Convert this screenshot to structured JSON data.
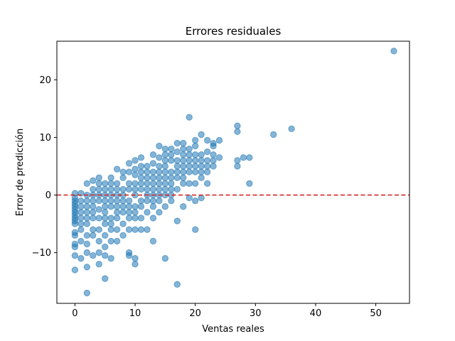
{
  "chart_data": {
    "type": "scatter",
    "title": "Errores residuales",
    "xlabel": "Ventas reales",
    "ylabel": "Error de predicción",
    "xlim": [
      -3,
      55.6
    ],
    "ylim": [
      -18.8,
      26.7
    ],
    "xticks": [
      0,
      10,
      20,
      30,
      40,
      50
    ],
    "yticks": [
      -10,
      0,
      10,
      20
    ],
    "yticklabels": [
      "−10",
      "0",
      "10",
      "20"
    ],
    "grid": false,
    "reference_line": {
      "y": 0,
      "color": "#d62728",
      "style": "dashed"
    },
    "marker_color": "#1f77b4",
    "marker_alpha": 0.55,
    "series": [
      {
        "points": [
          [
            0,
            -13
          ],
          [
            0,
            -10.5
          ],
          [
            0,
            -9
          ],
          [
            0,
            -8.5
          ],
          [
            0,
            -7
          ],
          [
            0,
            -6.5
          ],
          [
            0,
            -5
          ],
          [
            0,
            -4.5
          ],
          [
            0,
            -4
          ],
          [
            0,
            -3.5
          ],
          [
            0,
            -3
          ],
          [
            0,
            -2.5
          ],
          [
            0,
            -2
          ],
          [
            0,
            -1.5
          ],
          [
            0,
            -1
          ],
          [
            0,
            -0.5
          ],
          [
            0,
            0.3
          ],
          [
            1,
            -11
          ],
          [
            1,
            -8
          ],
          [
            1,
            -6
          ],
          [
            1,
            -5
          ],
          [
            1,
            -4
          ],
          [
            1,
            -3
          ],
          [
            1,
            -2
          ],
          [
            1,
            -1
          ],
          [
            1,
            0.3
          ],
          [
            2,
            -17
          ],
          [
            2,
            -12.5
          ],
          [
            2,
            -10
          ],
          [
            2,
            -8.5
          ],
          [
            2,
            -7
          ],
          [
            2,
            -5
          ],
          [
            2,
            -4
          ],
          [
            2,
            -3
          ],
          [
            2,
            -2
          ],
          [
            2,
            -1
          ],
          [
            2,
            0
          ],
          [
            2,
            2
          ],
          [
            3,
            -10.5
          ],
          [
            3,
            -7
          ],
          [
            3,
            -6
          ],
          [
            3,
            -4
          ],
          [
            3,
            -3
          ],
          [
            3,
            -2
          ],
          [
            3,
            -1
          ],
          [
            3,
            0
          ],
          [
            3,
            1
          ],
          [
            3,
            2.5
          ],
          [
            4,
            -12
          ],
          [
            4,
            -10
          ],
          [
            4,
            -8
          ],
          [
            4,
            -6
          ],
          [
            4,
            -4
          ],
          [
            4,
            -2.5
          ],
          [
            4,
            -1
          ],
          [
            4,
            0
          ],
          [
            4,
            1
          ],
          [
            4,
            2
          ],
          [
            4,
            3
          ],
          [
            5,
            -14.5
          ],
          [
            5,
            -10.5
          ],
          [
            5,
            -9
          ],
          [
            5,
            -7
          ],
          [
            5,
            -5
          ],
          [
            5,
            -4
          ],
          [
            5,
            -3
          ],
          [
            5,
            -2
          ],
          [
            5,
            -1
          ],
          [
            5,
            0
          ],
          [
            5,
            1
          ],
          [
            5,
            2
          ],
          [
            6,
            -11
          ],
          [
            6,
            -8
          ],
          [
            6,
            -6
          ],
          [
            6,
            -5
          ],
          [
            6,
            -4
          ],
          [
            6,
            -2
          ],
          [
            6,
            -1
          ],
          [
            6,
            0
          ],
          [
            6,
            1
          ],
          [
            6,
            2
          ],
          [
            6,
            3
          ],
          [
            7,
            -8
          ],
          [
            7,
            -6
          ],
          [
            7,
            -4
          ],
          [
            7,
            -3
          ],
          [
            7,
            -2
          ],
          [
            7,
            -1
          ],
          [
            7,
            0
          ],
          [
            7,
            1
          ],
          [
            7,
            2
          ],
          [
            7,
            4.5
          ],
          [
            8,
            -7
          ],
          [
            8,
            -5
          ],
          [
            8,
            -3
          ],
          [
            8,
            -2
          ],
          [
            8,
            -1
          ],
          [
            8,
            0
          ],
          [
            8,
            1
          ],
          [
            8,
            3
          ],
          [
            8,
            4
          ],
          [
            9,
            -10.5
          ],
          [
            9,
            -10
          ],
          [
            9,
            -6
          ],
          [
            9,
            -4
          ],
          [
            9,
            -3
          ],
          [
            9,
            -2
          ],
          [
            9,
            -1
          ],
          [
            9,
            1
          ],
          [
            9,
            2
          ],
          [
            9,
            4
          ],
          [
            9,
            5.5
          ],
          [
            10,
            -12
          ],
          [
            10,
            -11
          ],
          [
            10,
            -6
          ],
          [
            10,
            -4
          ],
          [
            10,
            -3
          ],
          [
            10,
            -2
          ],
          [
            10,
            0
          ],
          [
            10,
            1
          ],
          [
            10,
            2
          ],
          [
            10,
            3.5
          ],
          [
            10,
            4.5
          ],
          [
            10,
            6
          ],
          [
            11,
            -6
          ],
          [
            11,
            -4
          ],
          [
            11,
            -2
          ],
          [
            11,
            -1
          ],
          [
            11,
            1
          ],
          [
            11,
            2
          ],
          [
            11,
            3
          ],
          [
            11,
            4
          ],
          [
            11,
            5
          ],
          [
            11,
            6.5
          ],
          [
            12,
            -6
          ],
          [
            12,
            -3
          ],
          [
            12,
            -1
          ],
          [
            12,
            0
          ],
          [
            12,
            1
          ],
          [
            12,
            2
          ],
          [
            12,
            3
          ],
          [
            12,
            4
          ],
          [
            12,
            5
          ],
          [
            13,
            -8
          ],
          [
            13,
            -4
          ],
          [
            13,
            -2
          ],
          [
            13,
            -1
          ],
          [
            13,
            0
          ],
          [
            13,
            1
          ],
          [
            13,
            2
          ],
          [
            13,
            3
          ],
          [
            13,
            4
          ],
          [
            13,
            5.5
          ],
          [
            13,
            7
          ],
          [
            14,
            -3
          ],
          [
            14,
            -1
          ],
          [
            14,
            0
          ],
          [
            14,
            1
          ],
          [
            14,
            2
          ],
          [
            14,
            3
          ],
          [
            14,
            4
          ],
          [
            14,
            5
          ],
          [
            14,
            6.5
          ],
          [
            14,
            8.5
          ],
          [
            15,
            -11
          ],
          [
            15,
            -2
          ],
          [
            15,
            0
          ],
          [
            15,
            1
          ],
          [
            15,
            2
          ],
          [
            15,
            3
          ],
          [
            15,
            4
          ],
          [
            15,
            5
          ],
          [
            15,
            6
          ],
          [
            15,
            7
          ],
          [
            15,
            8
          ],
          [
            16,
            -1
          ],
          [
            16,
            0
          ],
          [
            16,
            1
          ],
          [
            16,
            2
          ],
          [
            16,
            3
          ],
          [
            16,
            4
          ],
          [
            16,
            6
          ],
          [
            16,
            7
          ],
          [
            16,
            8
          ],
          [
            17,
            -15.5
          ],
          [
            17,
            -4.5
          ],
          [
            17,
            1
          ],
          [
            17,
            3
          ],
          [
            17,
            4
          ],
          [
            17,
            5
          ],
          [
            17,
            6
          ],
          [
            17,
            7.5
          ],
          [
            17,
            9
          ],
          [
            18,
            -2
          ],
          [
            18,
            2
          ],
          [
            18,
            3
          ],
          [
            18,
            4
          ],
          [
            18,
            5
          ],
          [
            18,
            6
          ],
          [
            18,
            7
          ],
          [
            18,
            8
          ],
          [
            18,
            9
          ],
          [
            19,
            -0.5
          ],
          [
            19,
            2
          ],
          [
            19,
            4
          ],
          [
            19,
            5
          ],
          [
            19,
            6
          ],
          [
            19,
            7
          ],
          [
            19,
            8
          ],
          [
            19,
            13.5
          ],
          [
            20,
            -6
          ],
          [
            20,
            -1
          ],
          [
            20,
            2
          ],
          [
            20,
            4
          ],
          [
            20,
            5
          ],
          [
            20,
            6
          ],
          [
            20,
            7
          ],
          [
            20,
            8.5
          ],
          [
            20,
            9.5
          ],
          [
            21,
            -0.5
          ],
          [
            21,
            3
          ],
          [
            21,
            4
          ],
          [
            21,
            5
          ],
          [
            21,
            6
          ],
          [
            21,
            7
          ],
          [
            21,
            10.5
          ],
          [
            22,
            2
          ],
          [
            22,
            4
          ],
          [
            22,
            5
          ],
          [
            22,
            6
          ],
          [
            22,
            7.5
          ],
          [
            22,
            9.5
          ],
          [
            23,
            5
          ],
          [
            23,
            6
          ],
          [
            23,
            7
          ],
          [
            23,
            8.5
          ],
          [
            23,
            9
          ],
          [
            24,
            6.5
          ],
          [
            24,
            9.5
          ],
          [
            27,
            5
          ],
          [
            27,
            6
          ],
          [
            27,
            11
          ],
          [
            27,
            12
          ],
          [
            28,
            6.5
          ],
          [
            29,
            2
          ],
          [
            29,
            6.5
          ],
          [
            33,
            10.5
          ],
          [
            36,
            11.5
          ],
          [
            53,
            25
          ]
        ]
      }
    ]
  }
}
